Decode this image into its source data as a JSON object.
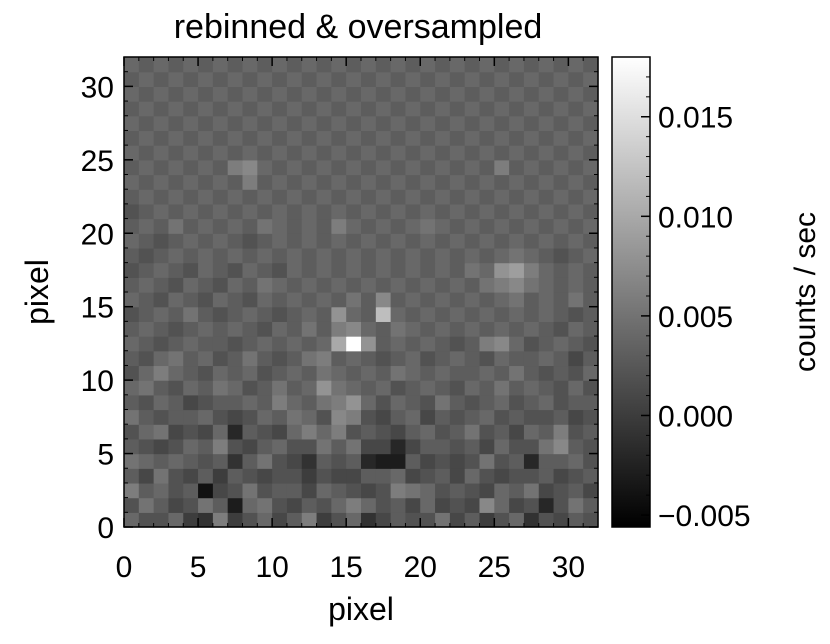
{
  "chart_data": {
    "type": "heatmap",
    "title": "rebinned & oversampled",
    "xlabel": "pixel",
    "ylabel": "pixel",
    "colorbar_label": "counts / sec",
    "xlim": [
      0,
      32
    ],
    "ylim": [
      0,
      32
    ],
    "x_ticks": [
      0,
      5,
      10,
      15,
      20,
      25,
      30
    ],
    "y_ticks": [
      0,
      5,
      10,
      15,
      20,
      25,
      30
    ],
    "x_tick_labels": [
      "0",
      "5",
      "10",
      "15",
      "20",
      "25",
      "30"
    ],
    "y_tick_labels": [
      "0",
      "5",
      "10",
      "15",
      "20",
      "25",
      "30"
    ],
    "colorbar_range": [
      -0.0056,
      0.018
    ],
    "colorbar_ticks": [
      -0.005,
      0.0,
      0.005,
      0.01,
      0.015
    ],
    "colorbar_tick_labels": [
      "−0.005",
      "0.000",
      "0.005",
      "0.010",
      "0.015"
    ],
    "colormap": "grayscale",
    "grid": [
      [
        0.004,
        0.002,
        0.002,
        0.004,
        0.0,
        -0.001,
        0.006,
        0.0,
        0.002,
        0.004,
        0.001,
        0.003,
        0.006,
        0.0,
        0.002,
        0.004,
        -0.001,
        0.001,
        0.003,
        0.002,
        0.002,
        0.005,
        0.001,
        0.003,
        0.0,
        0.002,
        0.004,
        -0.001,
        0.002,
        0.001,
        0.003,
        0.002
      ],
      [
        0.002,
        0.005,
        0.003,
        0.001,
        0.002,
        0.005,
        0.003,
        -0.003,
        0.004,
        0.005,
        0.002,
        0.001,
        0.003,
        0.002,
        0.004,
        0.006,
        0.004,
        0.002,
        0.003,
        0.001,
        0.004,
        0.001,
        0.002,
        0.001,
        0.007,
        0.004,
        0.001,
        0.002,
        -0.002,
        0.002,
        0.005,
        0.003
      ],
      [
        0.006,
        0.003,
        0.004,
        0.002,
        0.003,
        -0.004,
        0.001,
        0.002,
        0.005,
        0.002,
        0.003,
        0.003,
        0.001,
        0.004,
        0.003,
        0.002,
        0.001,
        0.002,
        0.006,
        0.005,
        0.004,
        0.002,
        0.003,
        0.002,
        0.001,
        0.004,
        0.003,
        0.005,
        0.001,
        0.002,
        0.003,
        0.001
      ],
      [
        0.003,
        0.001,
        0.005,
        0.002,
        0.001,
        0.003,
        0.0,
        0.003,
        0.002,
        0.001,
        0.002,
        0.002,
        0.0,
        0.002,
        0.001,
        0.001,
        0.003,
        0.003,
        0.004,
        0.001,
        0.002,
        0.003,
        0.001,
        0.004,
        0.002,
        0.001,
        0.002,
        0.002,
        0.003,
        0.001,
        0.002,
        0.003
      ],
      [
        0.005,
        0.004,
        0.003,
        0.004,
        0.003,
        0.002,
        0.003,
        -0.001,
        0.003,
        0.005,
        0.002,
        0.001,
        -0.001,
        0.003,
        0.002,
        0.003,
        -0.002,
        -0.003,
        -0.003,
        0.003,
        0.001,
        0.002,
        0.001,
        0.002,
        0.005,
        0.002,
        0.003,
        -0.002,
        0.003,
        0.003,
        0.004,
        0.002
      ],
      [
        0.003,
        0.002,
        0.001,
        0.002,
        0.004,
        0.003,
        0.006,
        0.002,
        0.001,
        0.003,
        0.004,
        0.002,
        0.002,
        0.005,
        0.003,
        0.005,
        0.001,
        0.001,
        -0.002,
        0.001,
        0.003,
        0.003,
        0.002,
        0.003,
        0.001,
        0.004,
        0.002,
        0.002,
        0.005,
        0.007,
        0.003,
        0.002
      ],
      [
        0.002,
        0.004,
        0.005,
        0.001,
        0.002,
        0.001,
        0.004,
        -0.002,
        0.003,
        0.002,
        0.001,
        0.004,
        0.006,
        0.004,
        0.006,
        0.002,
        0.003,
        0.002,
        0.001,
        0.003,
        0.004,
        0.002,
        0.003,
        0.005,
        0.002,
        0.003,
        0.001,
        0.004,
        0.003,
        0.006,
        0.002,
        0.003
      ],
      [
        0.005,
        0.003,
        0.002,
        0.003,
        0.003,
        0.004,
        0.002,
        0.001,
        0.002,
        0.004,
        0.003,
        0.005,
        0.004,
        0.002,
        0.007,
        0.006,
        0.002,
        0.001,
        0.003,
        0.004,
        0.001,
        0.003,
        0.002,
        0.003,
        0.004,
        0.002,
        0.003,
        0.002,
        0.002,
        0.003,
        0.001,
        0.002
      ],
      [
        0.003,
        0.002,
        0.004,
        0.003,
        0.001,
        0.002,
        0.003,
        0.003,
        0.004,
        0.003,
        0.006,
        0.004,
        0.003,
        0.005,
        0.006,
        0.008,
        0.004,
        0.002,
        0.004,
        0.003,
        0.002,
        0.005,
        0.003,
        0.002,
        0.003,
        0.004,
        0.002,
        0.003,
        0.004,
        0.002,
        0.003,
        0.003
      ],
      [
        0.004,
        0.005,
        0.003,
        0.002,
        0.004,
        0.003,
        0.005,
        0.004,
        0.002,
        0.003,
        0.005,
        0.003,
        0.004,
        0.008,
        0.005,
        0.004,
        0.003,
        0.004,
        0.002,
        0.003,
        0.004,
        0.003,
        0.002,
        0.004,
        0.003,
        0.005,
        0.003,
        0.004,
        0.003,
        0.002,
        0.004,
        0.002
      ],
      [
        0.002,
        0.004,
        0.006,
        0.004,
        0.003,
        0.002,
        0.004,
        0.003,
        0.004,
        0.002,
        0.003,
        0.004,
        0.003,
        0.005,
        0.004,
        0.003,
        0.004,
        0.003,
        0.005,
        0.004,
        0.003,
        0.004,
        0.003,
        0.003,
        0.004,
        0.003,
        0.005,
        0.003,
        0.002,
        0.003,
        0.002,
        0.004
      ],
      [
        0.003,
        0.002,
        0.004,
        0.005,
        0.003,
        0.004,
        0.002,
        0.003,
        0.005,
        0.003,
        0.002,
        0.003,
        0.005,
        0.006,
        0.003,
        0.004,
        0.003,
        0.002,
        0.003,
        0.004,
        0.002,
        0.003,
        0.004,
        0.003,
        0.002,
        0.004,
        0.003,
        0.003,
        0.004,
        0.003,
        0.001,
        0.003
      ],
      [
        0.004,
        0.003,
        0.002,
        0.003,
        0.004,
        0.003,
        0.003,
        0.002,
        0.003,
        0.004,
        0.003,
        0.004,
        0.003,
        0.004,
        0.01,
        0.018,
        0.008,
        0.003,
        0.004,
        0.003,
        0.004,
        0.003,
        0.002,
        0.003,
        0.006,
        0.007,
        0.004,
        0.002,
        0.003,
        0.004,
        0.003,
        0.002
      ],
      [
        0.003,
        0.004,
        0.003,
        0.002,
        0.003,
        0.004,
        0.003,
        0.004,
        0.003,
        0.002,
        0.004,
        0.003,
        0.005,
        0.003,
        0.006,
        0.007,
        0.004,
        0.003,
        0.005,
        0.004,
        0.003,
        0.004,
        0.003,
        0.004,
        0.003,
        0.004,
        0.003,
        0.004,
        0.003,
        0.002,
        0.004,
        0.003
      ],
      [
        0.002,
        0.003,
        0.004,
        0.003,
        0.005,
        0.003,
        0.002,
        0.003,
        0.004,
        0.003,
        0.002,
        0.003,
        0.004,
        0.003,
        0.008,
        0.004,
        0.003,
        0.012,
        0.004,
        0.003,
        0.004,
        0.003,
        0.004,
        0.003,
        0.004,
        0.003,
        0.004,
        0.003,
        0.004,
        0.003,
        0.002,
        0.003
      ],
      [
        0.004,
        0.003,
        0.002,
        0.004,
        0.003,
        0.002,
        0.004,
        0.003,
        0.002,
        0.004,
        0.003,
        0.004,
        0.003,
        0.004,
        0.003,
        0.005,
        0.003,
        0.007,
        0.003,
        0.004,
        0.003,
        0.004,
        0.003,
        0.004,
        0.003,
        0.004,
        0.005,
        0.003,
        0.004,
        0.003,
        0.005,
        0.003
      ],
      [
        0.003,
        0.004,
        0.003,
        0.002,
        0.004,
        0.003,
        0.002,
        0.004,
        0.003,
        0.005,
        0.004,
        0.003,
        0.004,
        0.003,
        0.004,
        0.003,
        0.004,
        0.003,
        0.004,
        0.003,
        0.004,
        0.003,
        0.004,
        0.003,
        0.005,
        0.006,
        0.007,
        0.005,
        0.004,
        0.003,
        0.004,
        0.003
      ],
      [
        0.002,
        0.003,
        0.004,
        0.003,
        0.002,
        0.004,
        0.003,
        0.002,
        0.004,
        0.003,
        0.002,
        0.004,
        0.003,
        0.004,
        0.003,
        0.004,
        0.003,
        0.004,
        0.003,
        0.004,
        0.003,
        0.004,
        0.003,
        0.005,
        0.004,
        0.008,
        0.009,
        0.006,
        0.004,
        0.003,
        0.004,
        0.003
      ],
      [
        0.003,
        0.002,
        0.003,
        0.004,
        0.003,
        0.004,
        0.003,
        0.004,
        0.003,
        0.004,
        0.003,
        0.004,
        0.003,
        0.004,
        0.003,
        0.004,
        0.003,
        0.004,
        0.003,
        0.004,
        0.003,
        0.004,
        0.003,
        0.004,
        0.003,
        0.004,
        0.005,
        0.004,
        0.003,
        0.002,
        0.003,
        0.004
      ],
      [
        0.004,
        0.003,
        0.002,
        0.003,
        0.004,
        0.003,
        0.004,
        0.003,
        0.002,
        0.003,
        0.004,
        0.003,
        0.004,
        0.003,
        0.004,
        0.003,
        0.004,
        0.003,
        0.004,
        0.003,
        0.004,
        0.003,
        0.004,
        0.003,
        0.004,
        0.003,
        0.004,
        0.003,
        0.004,
        0.003,
        0.004,
        0.003
      ],
      [
        0.003,
        0.004,
        0.003,
        0.005,
        0.003,
        0.004,
        0.003,
        0.004,
        0.003,
        0.005,
        0.004,
        0.003,
        0.004,
        0.003,
        0.006,
        0.004,
        0.003,
        0.004,
        0.003,
        0.004,
        0.005,
        0.004,
        0.003,
        0.004,
        0.003,
        0.004,
        0.003,
        0.004,
        0.003,
        0.004,
        0.003,
        0.004
      ],
      [
        0.002,
        0.003,
        0.004,
        0.003,
        0.004,
        0.003,
        0.004,
        0.003,
        0.004,
        0.003,
        0.004,
        0.003,
        0.004,
        0.003,
        0.004,
        0.003,
        0.004,
        0.003,
        0.004,
        0.003,
        0.004,
        0.003,
        0.004,
        0.003,
        0.004,
        0.003,
        0.004,
        0.003,
        0.004,
        0.003,
        0.004,
        0.003
      ],
      [
        0.003,
        0.004,
        0.003,
        0.004,
        0.003,
        0.004,
        0.003,
        0.004,
        0.003,
        0.004,
        0.003,
        0.004,
        0.003,
        0.004,
        0.003,
        0.004,
        0.003,
        0.004,
        0.003,
        0.004,
        0.003,
        0.004,
        0.003,
        0.004,
        0.003,
        0.004,
        0.003,
        0.004,
        0.003,
        0.004,
        0.003,
        0.004
      ],
      [
        0.004,
        0.003,
        0.004,
        0.003,
        0.004,
        0.003,
        0.004,
        0.003,
        0.006,
        0.003,
        0.004,
        0.003,
        0.004,
        0.003,
        0.004,
        0.003,
        0.004,
        0.003,
        0.004,
        0.003,
        0.004,
        0.003,
        0.004,
        0.003,
        0.004,
        0.003,
        0.004,
        0.003,
        0.004,
        0.003,
        0.004,
        0.003
      ],
      [
        0.003,
        0.004,
        0.003,
        0.004,
        0.003,
        0.004,
        0.003,
        0.006,
        0.007,
        0.004,
        0.003,
        0.004,
        0.003,
        0.004,
        0.003,
        0.004,
        0.003,
        0.004,
        0.003,
        0.004,
        0.003,
        0.004,
        0.003,
        0.004,
        0.003,
        0.006,
        0.003,
        0.004,
        0.003,
        0.004,
        0.003,
        0.004
      ],
      [
        0.004,
        0.003,
        0.004,
        0.003,
        0.004,
        0.003,
        0.004,
        0.003,
        0.004,
        0.003,
        0.004,
        0.003,
        0.004,
        0.003,
        0.004,
        0.003,
        0.004,
        0.003,
        0.004,
        0.003,
        0.004,
        0.003,
        0.004,
        0.003,
        0.004,
        0.003,
        0.004,
        0.003,
        0.004,
        0.003,
        0.004,
        0.003
      ],
      [
        0.003,
        0.004,
        0.003,
        0.004,
        0.003,
        0.004,
        0.003,
        0.004,
        0.003,
        0.004,
        0.003,
        0.004,
        0.003,
        0.004,
        0.003,
        0.004,
        0.003,
        0.004,
        0.003,
        0.004,
        0.003,
        0.004,
        0.003,
        0.004,
        0.003,
        0.004,
        0.003,
        0.004,
        0.003,
        0.004,
        0.003,
        0.004
      ],
      [
        0.004,
        0.003,
        0.004,
        0.003,
        0.004,
        0.003,
        0.004,
        0.003,
        0.004,
        0.003,
        0.004,
        0.003,
        0.004,
        0.003,
        0.004,
        0.003,
        0.004,
        0.003,
        0.004,
        0.003,
        0.004,
        0.003,
        0.004,
        0.003,
        0.004,
        0.003,
        0.004,
        0.003,
        0.004,
        0.003,
        0.004,
        0.003
      ],
      [
        0.003,
        0.004,
        0.003,
        0.004,
        0.003,
        0.004,
        0.003,
        0.004,
        0.003,
        0.004,
        0.003,
        0.004,
        0.003,
        0.004,
        0.003,
        0.004,
        0.003,
        0.004,
        0.003,
        0.004,
        0.003,
        0.004,
        0.003,
        0.004,
        0.003,
        0.004,
        0.003,
        0.004,
        0.003,
        0.004,
        0.003,
        0.004
      ],
      [
        0.004,
        0.003,
        0.004,
        0.003,
        0.004,
        0.003,
        0.004,
        0.003,
        0.004,
        0.003,
        0.004,
        0.003,
        0.004,
        0.003,
        0.004,
        0.003,
        0.004,
        0.003,
        0.004,
        0.003,
        0.004,
        0.003,
        0.004,
        0.003,
        0.004,
        0.003,
        0.004,
        0.003,
        0.004,
        0.003,
        0.004,
        0.003
      ],
      [
        0.003,
        0.004,
        0.003,
        0.004,
        0.003,
        0.004,
        0.003,
        0.004,
        0.003,
        0.004,
        0.003,
        0.004,
        0.003,
        0.004,
        0.003,
        0.004,
        0.003,
        0.004,
        0.003,
        0.004,
        0.003,
        0.004,
        0.003,
        0.004,
        0.003,
        0.004,
        0.003,
        0.004,
        0.003,
        0.004,
        0.003,
        0.004
      ],
      [
        0.004,
        0.003,
        0.004,
        0.003,
        0.004,
        0.003,
        0.004,
        0.003,
        0.004,
        0.003,
        0.004,
        0.003,
        0.004,
        0.003,
        0.004,
        0.003,
        0.004,
        0.003,
        0.004,
        0.003,
        0.004,
        0.003,
        0.004,
        0.003,
        0.004,
        0.003,
        0.004,
        0.003,
        0.004,
        0.003,
        0.004,
        0.003
      ]
    ]
  }
}
